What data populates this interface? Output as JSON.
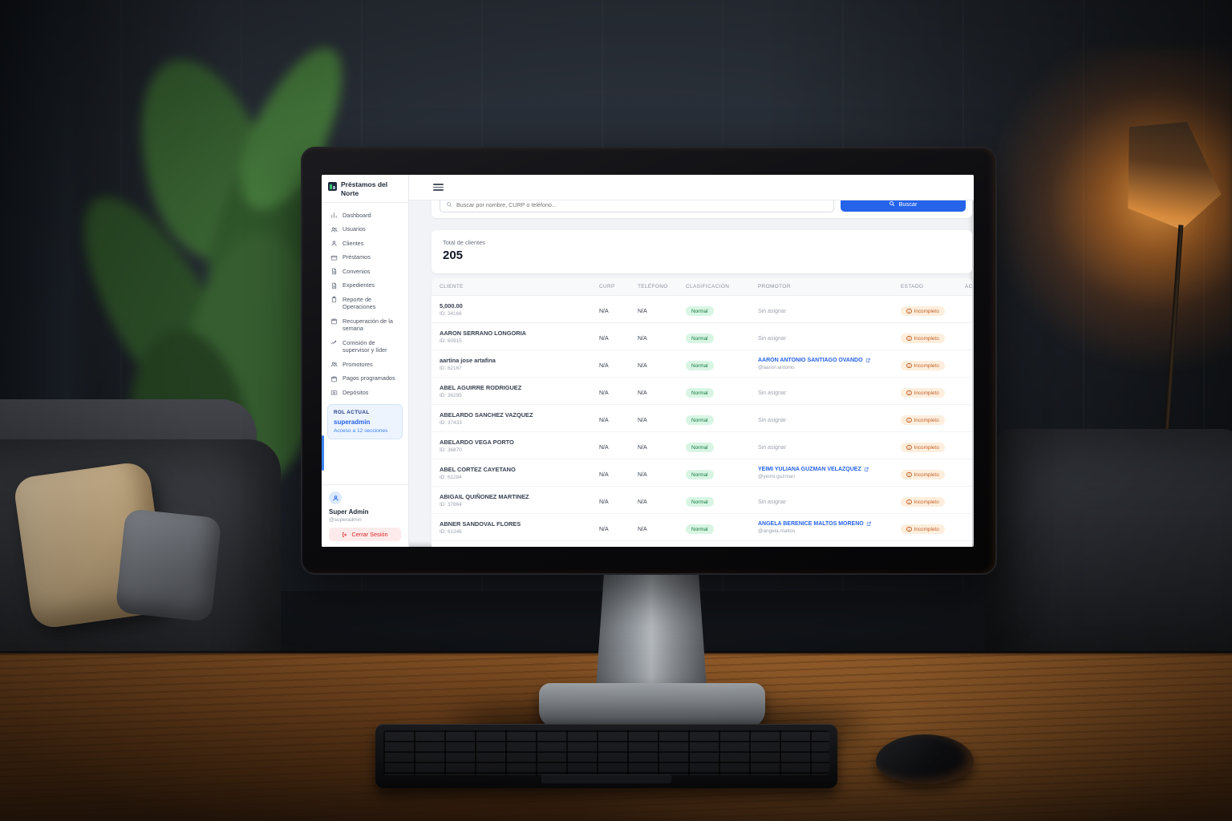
{
  "brand": {
    "line1": "Préstamos del",
    "line2": "Norte"
  },
  "sidebar": {
    "items": [
      {
        "label": "Dashboard",
        "icon": "chart-bar-icon"
      },
      {
        "label": "Usuarios",
        "icon": "users-icon"
      },
      {
        "label": "Clientes",
        "icon": "user-icon"
      },
      {
        "label": "Préstamos",
        "icon": "credit-card-icon"
      },
      {
        "label": "Convenios",
        "icon": "document-icon"
      },
      {
        "label": "Expedientes",
        "icon": "document-icon"
      },
      {
        "label": "Reporte de Operaciones",
        "icon": "clipboard-icon"
      },
      {
        "label": "Recuperación de la semana",
        "icon": "calendar-icon"
      },
      {
        "label": "Comisión de supervisor y líder",
        "icon": "trend-icon"
      },
      {
        "label": "Promotores",
        "icon": "users-icon"
      },
      {
        "label": "Pagos programados",
        "icon": "calendar-icon"
      },
      {
        "label": "Depósitos",
        "icon": "banknote-icon"
      }
    ],
    "role_box": {
      "title": "ROL ACTUAL",
      "role": "superadmin",
      "access": "Acceso a 12 secciones"
    },
    "user": {
      "name": "Super Admin",
      "handle": "@superadmin",
      "logout_label": "Cerrar Sesión"
    }
  },
  "search": {
    "placeholder": "Buscar por nombre, CURP o teléfono...",
    "button_label": "Buscar"
  },
  "summary": {
    "label": "Total de clientes",
    "value": "205"
  },
  "table": {
    "headers": [
      "Cliente",
      "CURP",
      "Teléfono",
      "Clasificación",
      "Promotor",
      "Estado",
      "Acciones"
    ],
    "status_label": "Incompleto",
    "classification_label": "Normal",
    "unassigned_label": "Sin asignar",
    "rows": [
      {
        "name": "5,000.00",
        "id": "ID: 34166",
        "curp": "N/A",
        "phone": "N/A",
        "classification": "Normal",
        "promoter": null,
        "status": "Incompleto"
      },
      {
        "name": "AARON SERRANO LONGORIA",
        "id": "ID: 60915",
        "curp": "N/A",
        "phone": "N/A",
        "classification": "Normal",
        "promoter": null,
        "status": "Incompleto"
      },
      {
        "name": "aartina jose artafina",
        "id": "ID: 62167",
        "curp": "N/A",
        "phone": "N/A",
        "classification": "Normal",
        "promoter": {
          "name": "AARON ANTONIO SANTIAGO OVANDO",
          "handle": "@aaron.antonio"
        },
        "status": "Incompleto"
      },
      {
        "name": "ABEL AGUIRRE RODRIGUEZ",
        "id": "ID: 36295",
        "curp": "N/A",
        "phone": "N/A",
        "classification": "Normal",
        "promoter": null,
        "status": "Incompleto"
      },
      {
        "name": "ABELARDO SANCHEZ VAZQUEZ",
        "id": "ID: 37433",
        "curp": "N/A",
        "phone": "N/A",
        "classification": "Normal",
        "promoter": null,
        "status": "Incompleto"
      },
      {
        "name": "ABELARDO VEGA PORTO",
        "id": "ID: 36870",
        "curp": "N/A",
        "phone": "N/A",
        "classification": "Normal",
        "promoter": null,
        "status": "Incompleto"
      },
      {
        "name": "ABEL CORTEZ CAYETANO",
        "id": "ID: 61284",
        "curp": "N/A",
        "phone": "N/A",
        "classification": "Normal",
        "promoter": {
          "name": "YEIMI YULIANA GUZMAN VELAZQUEZ",
          "handle": "@yeimi.guzman"
        },
        "status": "Incompleto"
      },
      {
        "name": "ABIGAIL QUIÑONEZ MARTINEZ",
        "id": "ID: 37864",
        "curp": "N/A",
        "phone": "N/A",
        "classification": "Normal",
        "promoter": null,
        "status": "Incompleto"
      },
      {
        "name": "ABNER SANDOVAL FLORES",
        "id": "ID: 61346",
        "curp": "N/A",
        "phone": "N/A",
        "classification": "Normal",
        "promoter": {
          "name": "ANGELA BERENICE MALTOS MORENO",
          "handle": "@angela.maltos"
        },
        "status": "Incompleto"
      }
    ]
  },
  "colors": {
    "accent_blue": "#2563eb",
    "badge_green_bg": "#d8f5e3",
    "badge_green_text": "#177a43",
    "badge_orange_bg": "#fdeedd",
    "badge_orange_text": "#c2632a",
    "logout_bg": "#fdeaea",
    "logout_text": "#dc2626"
  }
}
